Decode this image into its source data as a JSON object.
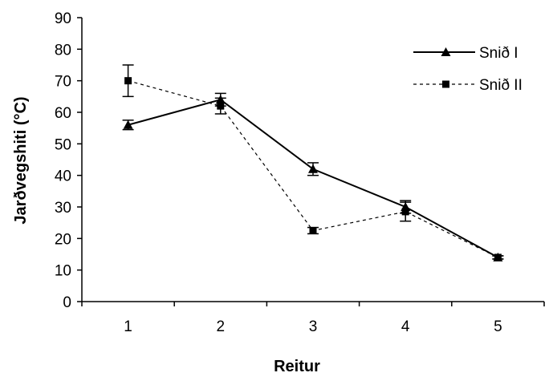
{
  "chart_data": {
    "type": "line",
    "title": "",
    "xlabel": "Reitur",
    "ylabel": "Jarðvegshiti (°C)",
    "categories": [
      "1",
      "2",
      "3",
      "4",
      "5"
    ],
    "ylim": [
      0,
      90
    ],
    "yticks": [
      0,
      10,
      20,
      30,
      40,
      50,
      60,
      70,
      80,
      90
    ],
    "grid": false,
    "legend_position": "top-right",
    "series": [
      {
        "name": "Snið I",
        "marker": "triangle",
        "line_style": "solid",
        "color": "#000000",
        "values": [
          56,
          64,
          42,
          30,
          14
        ],
        "error": [
          1.5,
          2,
          2,
          2,
          0.5
        ]
      },
      {
        "name": "Snið II",
        "marker": "square",
        "line_style": "dashed",
        "color": "#000000",
        "values": [
          70,
          62,
          22.5,
          28.5,
          14
        ],
        "error": [
          5,
          2.5,
          1,
          3,
          0.5
        ]
      }
    ]
  }
}
